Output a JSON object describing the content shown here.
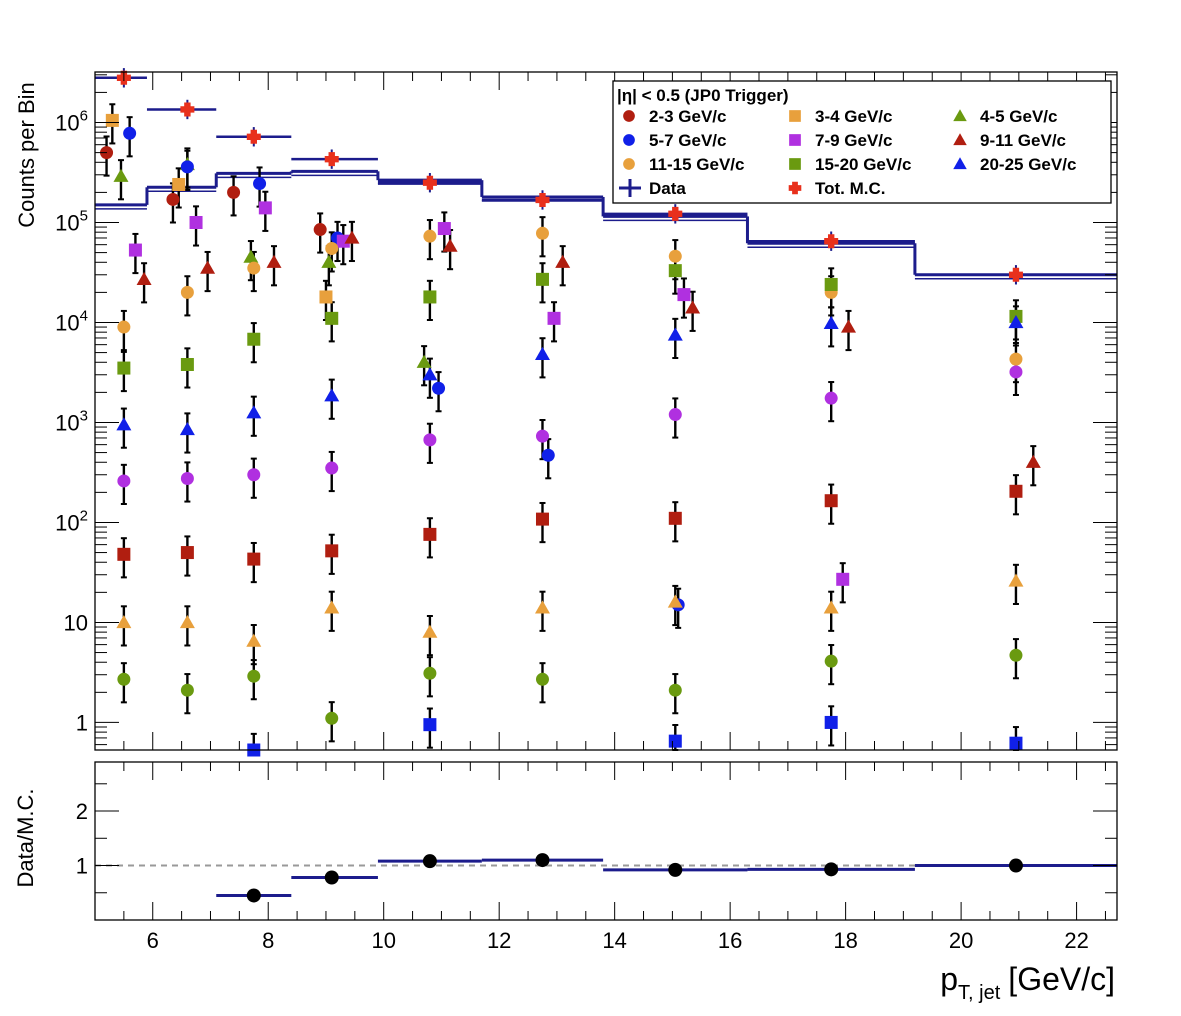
{
  "chart_data": [
    {
      "type": "scatter",
      "ylabel": "Counts per Bin",
      "xlabel": "",
      "xlim": [
        5,
        22.7
      ],
      "ylim": [
        0.53,
        3200000
      ],
      "yscale": "log",
      "y_ticks": [
        1,
        10,
        100,
        1000,
        10000,
        100000,
        1000000
      ],
      "y_tick_labels": [
        "1",
        "10",
        "10^2",
        "10^3",
        "10^4",
        "10^5",
        "10^6"
      ],
      "legend": {
        "title": "|η| < 0.5 (JP0 Trigger)",
        "placement": "top-right",
        "columns": 3
      },
      "data_hist": {
        "name": "Data",
        "color": "#1c1c8c",
        "bin_edges": [
          5,
          5.9,
          7.1,
          8.4,
          9.9,
          11.7,
          13.8,
          16.3,
          19.2,
          22.7
        ],
        "values": [
          150000,
          225000,
          310000,
          325000,
          265000,
          180000,
          115000,
          62000,
          30000
        ]
      },
      "series": [
        {
          "name": "Tot. M.C.",
          "marker": "cross",
          "color": "#e8301c",
          "points": [
            [
              5.5,
              2800000
            ],
            [
              6.6,
              1350000
            ],
            [
              7.75,
              720000
            ],
            [
              9.1,
              430000
            ],
            [
              10.8,
              250000
            ],
            [
              12.75,
              168000
            ],
            [
              15.05,
              122000
            ],
            [
              17.75,
              65000
            ],
            [
              20.95,
              30000
            ]
          ]
        },
        {
          "name": "2-3 GeV/c",
          "marker": "circle",
          "color": "#b01e10",
          "points": [
            [
              5.2,
              500000
            ],
            [
              6.35,
              170000
            ],
            [
              7.4,
              200000
            ],
            [
              8.9,
              85000
            ]
          ]
        },
        {
          "name": "3-4 GeV/c",
          "marker": "square",
          "color": "#e8a03c",
          "points": [
            [
              5.3,
              1050000
            ],
            [
              6.45,
              240000
            ],
            [
              9.0,
              18000
            ]
          ]
        },
        {
          "name": "4-5 GeV/c",
          "marker": "triangle",
          "color": "#6a9a10",
          "points": [
            [
              5.45,
              290000
            ],
            [
              6.6,
              380000
            ],
            [
              7.7,
              45000
            ],
            [
              9.05,
              40000
            ],
            [
              10.7,
              4000
            ]
          ]
        },
        {
          "name": "5-7 GeV/c",
          "marker": "circle",
          "color": "#1020e8",
          "points": [
            [
              5.6,
              780000
            ],
            [
              6.6,
              360000
            ],
            [
              7.85,
              245000
            ],
            [
              9.2,
              70000
            ],
            [
              10.95,
              2200
            ],
            [
              12.85,
              470
            ],
            [
              15.1,
              15
            ]
          ]
        },
        {
          "name": "7-9 GeV/c",
          "marker": "square",
          "color": "#b030e0",
          "points": [
            [
              5.7,
              53000
            ],
            [
              6.75,
              100000
            ],
            [
              7.95,
              140000
            ],
            [
              9.3,
              65000
            ],
            [
              11.05,
              87000
            ],
            [
              12.95,
              11000
            ],
            [
              15.2,
              19000
            ],
            [
              17.95,
              27
            ]
          ]
        },
        {
          "name": "9-11 GeV/c",
          "marker": "triangle",
          "color": "#b01e10",
          "points": [
            [
              5.85,
              27000
            ],
            [
              6.95,
              35000
            ],
            [
              8.1,
              40000
            ],
            [
              9.45,
              70000
            ],
            [
              11.15,
              58000
            ],
            [
              13.1,
              40000
            ],
            [
              15.35,
              14000
            ],
            [
              18.05,
              9000
            ],
            [
              21.25,
              400
            ]
          ]
        },
        {
          "name": "11-15 GeV/c",
          "marker": "circle",
          "color": "#e8a03c",
          "points": [
            [
              5.5,
              9000
            ],
            [
              6.6,
              20000
            ],
            [
              7.75,
              35000
            ],
            [
              9.1,
              55000
            ],
            [
              10.8,
              73000
            ],
            [
              12.75,
              78000
            ],
            [
              15.05,
              46000
            ],
            [
              17.75,
              20000
            ],
            [
              20.95,
              4300
            ]
          ]
        },
        {
          "name": "15-20 GeV/c",
          "marker": "square",
          "color": "#6a9a10",
          "points": [
            [
              5.5,
              3500
            ],
            [
              6.6,
              3800
            ],
            [
              7.75,
              6800
            ],
            [
              9.1,
              11000
            ],
            [
              10.8,
              18000
            ],
            [
              12.75,
              27000
            ],
            [
              15.05,
              33000
            ],
            [
              17.75,
              24000
            ],
            [
              20.95,
              11500
            ]
          ]
        },
        {
          "name": "20-25 GeV/c",
          "marker": "triangle",
          "color": "#1020e8",
          "points": [
            [
              5.5,
              950
            ],
            [
              6.6,
              850
            ],
            [
              7.75,
              1250
            ],
            [
              9.1,
              1850
            ],
            [
              10.8,
              3000
            ],
            [
              12.75,
              4800
            ],
            [
              15.05,
              7500
            ],
            [
              17.75,
              9800
            ],
            [
              20.95,
              10000
            ]
          ]
        },
        {
          "marker": "circle",
          "color": "#b030e0",
          "points": [
            [
              5.5,
              260
            ],
            [
              6.6,
              275
            ],
            [
              7.75,
              300
            ],
            [
              9.1,
              350
            ],
            [
              10.8,
              670
            ],
            [
              12.75,
              730
            ],
            [
              15.05,
              1200
            ],
            [
              17.75,
              1750
            ],
            [
              20.95,
              3200
            ]
          ]
        },
        {
          "marker": "square",
          "color": "#b01e10",
          "points": [
            [
              5.5,
              48
            ],
            [
              6.6,
              50
            ],
            [
              7.75,
              43
            ],
            [
              9.1,
              52
            ],
            [
              10.8,
              76
            ],
            [
              12.75,
              108
            ],
            [
              15.05,
              110
            ],
            [
              17.75,
              165
            ],
            [
              20.95,
              205
            ]
          ]
        },
        {
          "marker": "triangle",
          "color": "#e8a03c",
          "points": [
            [
              5.5,
              10
            ],
            [
              6.6,
              10
            ],
            [
              7.75,
              6.5
            ],
            [
              9.1,
              14
            ],
            [
              10.8,
              8
            ],
            [
              12.75,
              14
            ],
            [
              15.05,
              16
            ],
            [
              17.75,
              14
            ],
            [
              20.95,
              26
            ]
          ]
        },
        {
          "marker": "circle",
          "color": "#6a9a10",
          "points": [
            [
              5.5,
              2.7
            ],
            [
              6.6,
              2.1
            ],
            [
              7.75,
              2.9
            ],
            [
              9.1,
              1.1
            ],
            [
              10.8,
              3.1
            ],
            [
              12.75,
              2.7
            ],
            [
              15.05,
              2.1
            ],
            [
              17.75,
              4.1
            ],
            [
              20.95,
              4.7
            ]
          ]
        },
        {
          "marker": "square",
          "color": "#1020e8",
          "points": [
            [
              7.75,
              0.53
            ],
            [
              10.8,
              0.95
            ],
            [
              15.05,
              0.65
            ],
            [
              17.75,
              1.0
            ],
            [
              20.95,
              0.62
            ]
          ]
        }
      ]
    },
    {
      "type": "line",
      "ylabel": "Data/M.C.",
      "xlabel": "p_{T, jet} [GeV/c]",
      "x_label_main": "p",
      "x_label_sub": "T, jet",
      "x_label_unit": "[GeV/c]",
      "xlim": [
        5,
        22.7
      ],
      "ylim": [
        0,
        2.9
      ],
      "x_ticks": [
        6,
        8,
        10,
        12,
        14,
        16,
        18,
        20,
        22
      ],
      "y_ticks": [
        1,
        2
      ],
      "reference_line": 1,
      "ratio_hist": {
        "color": "#1c1c8c",
        "bin_edges": [
          5,
          5.9,
          7.1,
          8.4,
          9.9,
          11.7,
          13.8,
          16.3,
          19.2,
          22.7
        ],
        "values": [
          null,
          null,
          0.45,
          0.78,
          1.08,
          1.1,
          0.92,
          0.93,
          1.0
        ]
      },
      "points": [
        [
          7.75,
          0.45
        ],
        [
          9.1,
          0.78
        ],
        [
          10.8,
          1.08
        ],
        [
          12.75,
          1.1
        ],
        [
          15.05,
          0.92
        ],
        [
          17.75,
          0.93
        ],
        [
          20.95,
          1.0
        ]
      ]
    }
  ]
}
